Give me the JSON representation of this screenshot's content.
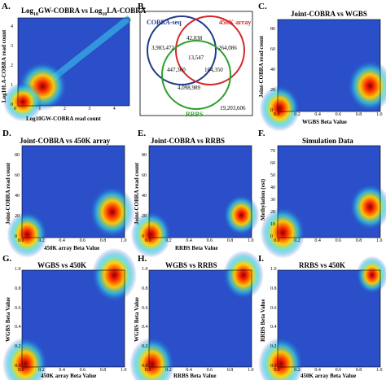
{
  "figure": {
    "panels": [
      {
        "id": "A",
        "label": "A.",
        "title_pre": "Log",
        "title_sub1": "10",
        "title_mid": "GW-COBRA vs Log",
        "title_sub2": "10",
        "title_post": "LA-COBRA",
        "xlabel": "Log10GW-COBRA read count",
        "ylabel": "Log10LA-COBRA read count",
        "xticks": [
          "0",
          "1",
          "2",
          "3",
          "4"
        ],
        "yticks": [
          "0",
          "1",
          "2",
          "3",
          "4"
        ]
      },
      {
        "id": "B",
        "label": "B."
      },
      {
        "id": "C",
        "label": "C.",
        "title": "Joint-COBRA vs WGBS",
        "xlabel": "WGBS Beta Value",
        "ylabel": "Joint-COBRA read count",
        "xticks": [
          "0.0",
          "0.2",
          "0.4",
          "0.6",
          "0.8",
          "1.0"
        ],
        "yticks": [
          "0",
          "20",
          "40",
          "60",
          "80"
        ]
      },
      {
        "id": "D",
        "label": "D.",
        "title": "Joint-COBRA vs 450K array",
        "xlabel": "450K array Beta Value",
        "ylabel": "Joint-COBRA read count",
        "xticks": [
          "0.0",
          "0.2",
          "0.4",
          "0.6",
          "0.8",
          "1.0"
        ],
        "yticks": [
          "0",
          "20",
          "40",
          "60",
          "80"
        ]
      },
      {
        "id": "E",
        "label": "E.",
        "title": "Joint-COBRA vs RRBS",
        "xlabel": "RRBS Beta Value",
        "ylabel": "Joint-COBRA read count",
        "xticks": [
          "0.0",
          "0.2",
          "0.4",
          "0.6",
          "0.8",
          "1.0"
        ],
        "yticks": [
          "0",
          "20",
          "40",
          "60",
          "80"
        ]
      },
      {
        "id": "F",
        "label": "F.",
        "title": "Simulation Data",
        "xlabel": "Beta Value",
        "ylabel": "Methylation (est)",
        "xticks": [
          "0.0",
          "0.2",
          "0.4",
          "0.6",
          "0.8",
          "1.0"
        ],
        "yticks": [
          "0",
          "10",
          "20",
          "30",
          "40",
          "50",
          "60",
          "70"
        ]
      },
      {
        "id": "G",
        "label": "G.",
        "title": "WGBS vs 450K",
        "xlabel": "450K array Beta Value",
        "ylabel": "WGBS Beta Value",
        "xticks": [
          "0.0",
          "0.2",
          "0.4",
          "0.6",
          "0.8",
          "1.0"
        ],
        "yticks": [
          "0.0",
          "0.2",
          "0.4",
          "0.6",
          "0.8",
          "1.0"
        ]
      },
      {
        "id": "H",
        "label": "H.",
        "title": "WGBS vs RRBS",
        "xlabel": "RRBS Beta Value",
        "ylabel": "WGBS Beta Value",
        "xticks": [
          "0.0",
          "0.2",
          "0.4",
          "0.6",
          "0.8",
          "1.0"
        ],
        "yticks": [
          "0.0",
          "0.2",
          "0.4",
          "0.6",
          "0.8",
          "1.0"
        ]
      },
      {
        "id": "I",
        "label": "I.",
        "title": "RRBS vs 450K",
        "xlabel": "450K array Beta Value",
        "ylabel": "RRBS Beta Value",
        "xticks": [
          "0.0",
          "0.2",
          "0.4",
          "0.6",
          "0.8",
          "1.0"
        ],
        "yticks": [
          "0.0",
          "0.2",
          "0.4",
          "0.6",
          "0.8",
          "1.0"
        ]
      }
    ],
    "venn": {
      "sets": [
        {
          "name": "COBRA-seq",
          "color": "#1f3a8a"
        },
        {
          "name": "450K array",
          "color": "#d62728"
        },
        {
          "name": "RRBS",
          "color": "#2ca02c"
        }
      ],
      "regions": {
        "cobra_only": "3,983,472",
        "cobra_450k": "42,038",
        "k450_only": "264,086",
        "all_three": "13,547",
        "cobra_rrbs": "447,360",
        "k450_rrbs": "164,350",
        "rrbs_only": "4,098,989",
        "outside": "19,203,606"
      }
    }
  },
  "chart_data": [
    {
      "type": "heatmap",
      "panel": "A",
      "title": "Log10GW-COBRA vs Log10LA-COBRA",
      "xlabel": "Log10GW-COBRA read count",
      "ylabel": "Log10LA-COBRA read count",
      "xlim": [
        0,
        4.5
      ],
      "ylim": [
        0,
        4.5
      ],
      "hotspots": [
        {
          "x": 1.0,
          "y": 1.0,
          "intensity": 1.0
        },
        {
          "x": 0.2,
          "y": 0.2,
          "intensity": 0.8
        }
      ],
      "diagonal": true
    },
    {
      "type": "heatmap",
      "panel": "C",
      "title": "Joint-COBRA vs WGBS",
      "xlabel": "WGBS Beta Value",
      "ylabel": "Joint-COBRA read count",
      "xlim": [
        0,
        1
      ],
      "ylim": [
        0,
        90
      ],
      "hotspots": [
        {
          "x": 0.9,
          "y": 25,
          "intensity": 1.0
        },
        {
          "x": 0.02,
          "y": 3,
          "intensity": 0.9
        }
      ]
    },
    {
      "type": "heatmap",
      "panel": "D",
      "title": "Joint-COBRA vs 450K array",
      "xlabel": "450K array Beta Value",
      "ylabel": "Joint-COBRA read count",
      "xlim": [
        0,
        1
      ],
      "ylim": [
        0,
        90
      ],
      "hotspots": [
        {
          "x": 0.88,
          "y": 25,
          "intensity": 1.0
        },
        {
          "x": 0.05,
          "y": 3,
          "intensity": 0.9
        }
      ]
    },
    {
      "type": "heatmap",
      "panel": "E",
      "title": "Joint-COBRA vs RRBS",
      "xlabel": "RRBS Beta Value",
      "ylabel": "Joint-COBRA read count",
      "xlim": [
        0,
        1
      ],
      "ylim": [
        0,
        90
      ],
      "hotspots": [
        {
          "x": 0.9,
          "y": 22,
          "intensity": 0.8
        },
        {
          "x": 0.02,
          "y": 3,
          "intensity": 0.9
        }
      ]
    },
    {
      "type": "heatmap",
      "panel": "F",
      "title": "Simulation Data",
      "xlabel": "Beta Value",
      "ylabel": "Methylation (est)",
      "xlim": [
        0,
        1
      ],
      "ylim": [
        0,
        75
      ],
      "hotspots": [
        {
          "x": 0.9,
          "y": 25,
          "intensity": 0.9
        },
        {
          "x": 0.05,
          "y": 4,
          "intensity": 1.0
        }
      ]
    },
    {
      "type": "heatmap",
      "panel": "G",
      "title": "WGBS vs 450K",
      "xlabel": "450K array Beta Value",
      "ylabel": "WGBS Beta Value",
      "xlim": [
        0,
        1
      ],
      "ylim": [
        0,
        1
      ],
      "hotspots": [
        {
          "x": 0.9,
          "y": 0.95,
          "intensity": 1.0
        },
        {
          "x": 0.03,
          "y": 0.03,
          "intensity": 1.0
        }
      ]
    },
    {
      "type": "heatmap",
      "panel": "H",
      "title": "WGBS vs RRBS",
      "xlabel": "RRBS Beta Value",
      "ylabel": "WGBS Beta Value",
      "xlim": [
        0,
        1
      ],
      "ylim": [
        0,
        1
      ],
      "hotspots": [
        {
          "x": 0.92,
          "y": 0.95,
          "intensity": 0.9
        },
        {
          "x": 0.03,
          "y": 0.03,
          "intensity": 1.0
        }
      ]
    },
    {
      "type": "heatmap",
      "panel": "I",
      "title": "RRBS vs 450K",
      "xlabel": "450K array Beta Value",
      "ylabel": "RRBS Beta Value",
      "xlim": [
        0,
        1
      ],
      "ylim": [
        0,
        1
      ],
      "hotspots": [
        {
          "x": 0.92,
          "y": 0.95,
          "intensity": 0.7
        },
        {
          "x": 0.03,
          "y": 0.03,
          "intensity": 1.0
        }
      ]
    }
  ]
}
